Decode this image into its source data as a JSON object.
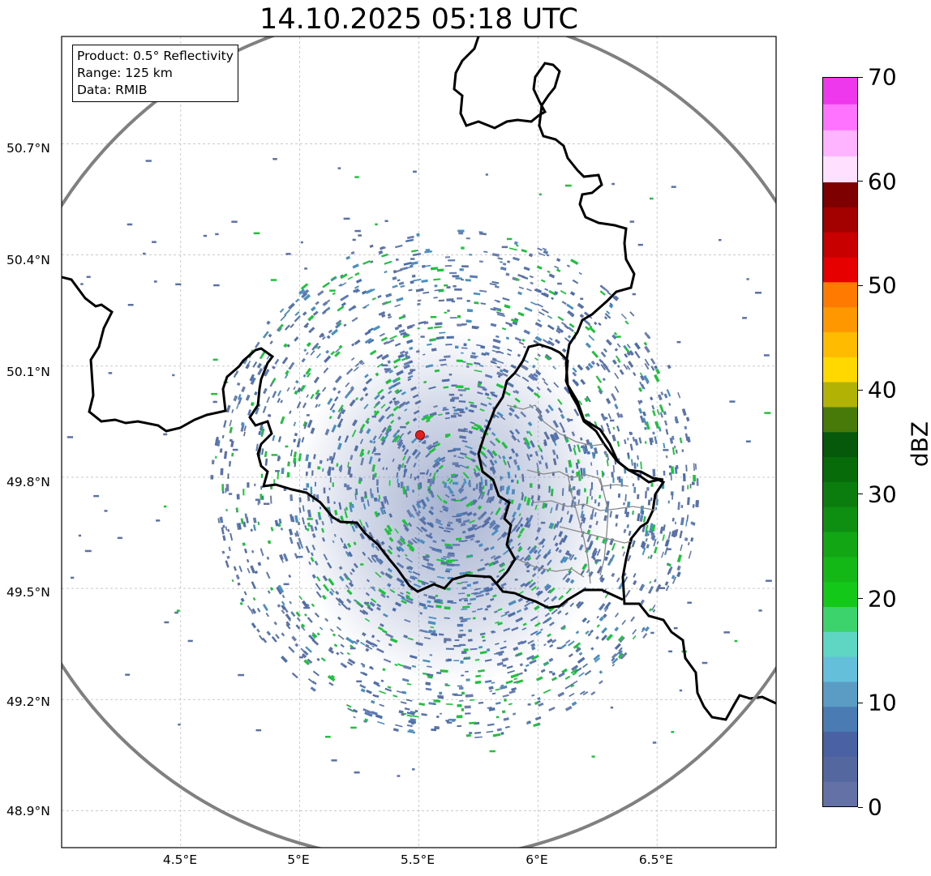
{
  "title": "14.10.2025 05:18 UTC",
  "infobox": {
    "product": "Product: 0.5° Reflectivity",
    "range": "Range: 125 km",
    "data": "Data: RMIB"
  },
  "lat_labels": [
    "50.7°N",
    "50.4°N",
    "50.1°N",
    "49.8°N",
    "49.5°N",
    "49.2°N",
    "48.9°N"
  ],
  "lon_labels": [
    "4.5°E",
    "5°E",
    "5.5°E",
    "6°E",
    "6.5°E"
  ],
  "map": {
    "extent": {
      "lon": [
        4.0,
        7.0
      ],
      "lat": [
        48.8,
        50.99
      ]
    },
    "gridlines": {
      "lon": [
        4.5,
        5.0,
        5.5,
        6.0,
        6.5
      ],
      "lat": [
        48.9,
        49.2,
        49.5,
        49.8,
        50.1,
        50.4,
        50.7
      ]
    },
    "radar_site": {
      "lon": 5.505,
      "lat": 49.914
    },
    "range_ring_color": "#808080",
    "site_marker_color": "#e02020"
  },
  "colorbar": {
    "label": "dBZ",
    "min": 0,
    "max": 70,
    "ticks": [
      "0",
      "10",
      "20",
      "30",
      "40",
      "50",
      "60",
      "70"
    ],
    "colors": [
      "#6471a6",
      "#55679f",
      "#4a62a4",
      "#4a7cb3",
      "#5a9cc4",
      "#64bfdb",
      "#5fd6c3",
      "#3cd26c",
      "#14c81a",
      "#13b817",
      "#12a614",
      "#0e8f11",
      "#0b7d0e",
      "#086b0a",
      "#06580a",
      "#477a08",
      "#b2b204",
      "#ffd800",
      "#ffbb00",
      "#ff9800",
      "#ff7a00",
      "#e60000",
      "#c80000",
      "#a30000",
      "#7f0000",
      "#ffe1ff",
      "#ffb4ff",
      "#ff73ff",
      "#ee38ee"
    ]
  }
}
